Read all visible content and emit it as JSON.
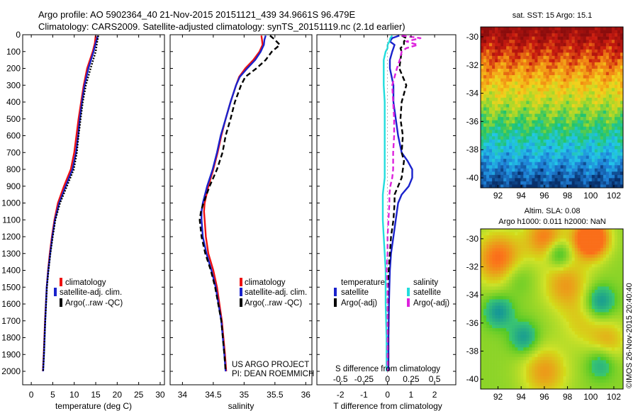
{
  "header": {
    "line1": "Argo profile: AO 5902364_40 21-Nov-2015 20151121_439 34.9661S 96.479E",
    "line2": "Climatology: CARS2009. Satellite-adjusted climatology: synTS_20151119.nc (2.1d earlier)"
  },
  "colors": {
    "climatology": "#ee1111",
    "satellite": "#1a22cc",
    "argo": "#000000",
    "sat_salinity": "#22dddd",
    "argo_salinity": "#dd22dd"
  },
  "chart_data": [
    {
      "type": "line",
      "id": "temperature",
      "xlabel": "temperature (deg C)",
      "ylabel": "",
      "xlim": [
        -2,
        31
      ],
      "ylim": [
        0,
        2080
      ],
      "xticks": [
        0,
        5,
        10,
        15,
        20,
        25,
        30
      ],
      "yticks": [
        0,
        100,
        200,
        300,
        400,
        500,
        600,
        700,
        800,
        900,
        1000,
        1100,
        1200,
        1300,
        1400,
        1500,
        1600,
        1700,
        1800,
        1900,
        2000
      ],
      "depth": [
        5,
        50,
        100,
        200,
        300,
        400,
        500,
        600,
        700,
        800,
        900,
        1000,
        1100,
        1200,
        1300,
        1400,
        1500,
        1700,
        1900,
        2000
      ],
      "series": [
        {
          "name": "climatology",
          "color": "#ee1111",
          "dash": "solid",
          "values": [
            15.0,
            14.8,
            14.3,
            13.0,
            12.2,
            11.6,
            11.0,
            10.5,
            10.0,
            9.2,
            7.6,
            6.2,
            5.4,
            4.8,
            4.3,
            3.9,
            3.6,
            3.2,
            2.9,
            2.7
          ]
        },
        {
          "name": "satellite-adj. clim.",
          "color": "#1a22cc",
          "dash": "solid",
          "values": [
            15.5,
            15.0,
            14.5,
            13.3,
            12.4,
            11.8,
            11.3,
            10.9,
            10.4,
            9.6,
            8.0,
            6.5,
            5.5,
            4.9,
            4.4,
            3.95,
            3.6,
            3.25,
            2.95,
            2.75
          ]
        },
        {
          "name": "Argo(..raw -QC)",
          "color": "#000000",
          "dash": "dotted",
          "values": [
            15.6,
            15.3,
            15.0,
            13.8,
            12.7,
            12.0,
            11.5,
            11.0,
            10.6,
            9.9,
            8.3,
            6.7,
            5.6,
            5.0,
            4.45,
            4.0,
            3.65,
            3.25,
            2.95,
            2.75
          ]
        }
      ]
    },
    {
      "type": "line",
      "id": "salinity",
      "xlabel": "salinity",
      "ylabel": "",
      "xlim": [
        33.8,
        36.1
      ],
      "ylim": [
        0,
        2080
      ],
      "xticks": [
        34,
        34.5,
        35,
        35.5,
        36
      ],
      "xtick_labels": [
        "34",
        "34.5",
        "35",
        "35.5",
        "36"
      ],
      "depth": [
        5,
        30,
        60,
        100,
        150,
        200,
        250,
        300,
        400,
        500,
        600,
        700,
        800,
        900,
        1000,
        1050,
        1100,
        1200,
        1300,
        1400,
        1500,
        1700,
        1900,
        2000
      ],
      "series": [
        {
          "name": "climatology",
          "color": "#ee1111",
          "dash": "solid",
          "values": [
            35.28,
            35.29,
            35.3,
            35.25,
            35.15,
            35.02,
            34.92,
            34.87,
            34.78,
            34.7,
            34.63,
            34.57,
            34.5,
            34.42,
            34.36,
            34.35,
            34.36,
            34.38,
            34.42,
            34.5,
            34.56,
            34.64,
            34.69,
            34.71
          ]
        },
        {
          "name": "satellite-adj. clim.",
          "color": "#1a22cc",
          "dash": "solid",
          "values": [
            35.35,
            35.33,
            35.32,
            35.27,
            35.18,
            35.05,
            34.93,
            34.87,
            34.78,
            34.7,
            34.62,
            34.56,
            34.49,
            34.4,
            34.33,
            34.31,
            34.31,
            34.33,
            34.39,
            34.47,
            34.54,
            34.63,
            34.68,
            34.7
          ]
        },
        {
          "name": "Argo(..raw -QC)",
          "color": "#000000",
          "dash": "dashed",
          "values": [
            35.42,
            35.5,
            35.58,
            35.45,
            35.35,
            35.2,
            35.02,
            34.95,
            34.85,
            34.78,
            34.7,
            34.65,
            34.56,
            34.44,
            34.34,
            34.3,
            34.28,
            34.31,
            34.37,
            34.46,
            34.53,
            34.63,
            34.68,
            34.7
          ]
        }
      ]
    },
    {
      "type": "line",
      "id": "difference",
      "xlabel": "T difference from climatology",
      "top_label": "S difference from climatology",
      "xlim": [
        -3.0,
        2.9
      ],
      "ylim": [
        0,
        2080
      ],
      "xticks": [
        -2,
        -1,
        0,
        1,
        2
      ],
      "xtick_labels": [
        "-2",
        "-1",
        "0",
        "1",
        "2"
      ],
      "top_ticks": [
        -0.5,
        -0.25,
        0,
        0.25,
        0.5
      ],
      "top_tick_labels": [
        "-0.5",
        "-0.25",
        "0",
        "0.25",
        "0.5"
      ],
      "legend_headers": [
        "temperature",
        "salinity"
      ],
      "depth": [
        5,
        20,
        40,
        60,
        80,
        100,
        150,
        200,
        300,
        400,
        500,
        600,
        700,
        750,
        800,
        850,
        900,
        950,
        1000,
        1100,
        1200,
        1300,
        1400,
        1500,
        1600,
        1800,
        2000
      ],
      "series": [
        {
          "name": "satellite",
          "group": "temperature",
          "color": "#1a22cc",
          "dash": "solid",
          "values": [
            0.5,
            0.2,
            0.1,
            0.3,
            0.25,
            0.2,
            0.1,
            0.1,
            0.25,
            0.25,
            0.35,
            0.45,
            0.6,
            0.85,
            1.05,
            1.05,
            0.9,
            0.6,
            0.45,
            0.35,
            0.25,
            0.15,
            0.1,
            0.08,
            0.06,
            0.04,
            0.04
          ]
        },
        {
          "name": "Argo(-adj)",
          "group": "temperature",
          "color": "#000000",
          "dash": "dashed",
          "values": [
            0.6,
            0.8,
            0.7,
            0.7,
            0.55,
            0.6,
            0.55,
            0.5,
            0.8,
            0.6,
            0.55,
            0.65,
            0.6,
            0.7,
            0.65,
            0.6,
            0.45,
            0.3,
            0.3,
            0.25,
            0.15,
            0.1,
            0.05,
            0.02,
            0.02,
            0.02,
            0.02
          ]
        },
        {
          "name": "satellite",
          "group": "salinity",
          "color": "#22dddd",
          "dash": "solid",
          "values": [
            0.05,
            0.03,
            0.02,
            0.0,
            0.0,
            -0.02,
            -0.04,
            -0.04,
            -0.04,
            -0.03,
            -0.03,
            -0.03,
            -0.03,
            -0.03,
            -0.03,
            -0.03,
            -0.04,
            -0.05,
            -0.05,
            -0.05,
            -0.04,
            -0.03,
            -0.02,
            -0.02,
            -0.02,
            -0.01,
            -0.01
          ]
        },
        {
          "name": "Argo(-adj)",
          "group": "salinity",
          "color": "#dd22dd",
          "dash": "dashed",
          "values": [
            0.15,
            0.35,
            0.2,
            0.32,
            0.2,
            0.15,
            0.13,
            0.1,
            0.05,
            0.06,
            0.07,
            0.07,
            0.06,
            0.06,
            0.06,
            0.05,
            0.03,
            0.02,
            0.02,
            0.01,
            0.0,
            0.0,
            -0.01,
            0.0,
            0.0,
            0.0,
            0.0
          ]
        }
      ]
    },
    {
      "type": "heatmap",
      "id": "sst-map",
      "title": "sat. SST: 15 Argo: 15.1",
      "xlim": [
        90.5,
        102.8
      ],
      "ylim": [
        -40.7,
        -29.3
      ],
      "xticks": [
        92,
        94,
        96,
        98,
        100,
        102
      ],
      "yticks": [
        -30,
        -32,
        -34,
        -36,
        -38,
        -40
      ],
      "colormap": [
        "#08306b",
        "#1f7fd6",
        "#22c7e8",
        "#22c46a",
        "#a5d82a",
        "#f3d21c",
        "#f28a14",
        "#c81a10",
        "#8c0c0c"
      ]
    },
    {
      "type": "heatmap",
      "id": "sla-map",
      "title": "Altim. SLA: 0.08",
      "subtitle": "Argo h1000: 0.011 h2000: NaN",
      "xlim": [
        90.5,
        102.8
      ],
      "ylim": [
        -40.7,
        -29.3
      ],
      "xticks": [
        92,
        94,
        96,
        98,
        100,
        102
      ],
      "yticks": [
        -30,
        -32,
        -34,
        -36,
        -38,
        -40
      ]
    }
  ],
  "legends": {
    "temp_panel": [
      "climatology",
      "satellite-adj. clim.",
      "Argo(..raw -QC)"
    ],
    "sal_panel": [
      "climatology",
      "satellite-adj. clim.",
      "Argo(..raw -QC)"
    ]
  },
  "credit": {
    "line1": "US ARGO PROJECT",
    "line2": "PI: DEAN ROEMMICH"
  },
  "watermark": "©IMOS 26-Nov-2015 20:40:40"
}
